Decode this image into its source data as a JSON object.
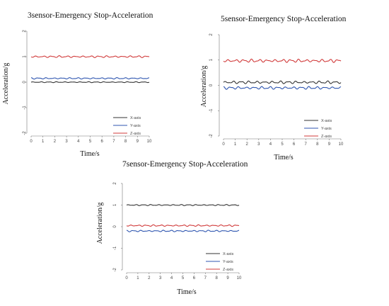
{
  "chart_data": [
    {
      "type": "line",
      "title": "3sensor-Emergency Stop-Acceleration",
      "xlabel": "Time/s",
      "ylabel": "Acceleration/g",
      "xticks": [
        "0",
        "1",
        "2",
        "3",
        "4",
        "5",
        "6",
        "7",
        "8",
        "9",
        "10"
      ],
      "yticks": [
        "-2",
        "-1",
        "0",
        "1",
        "2"
      ],
      "xlim": [
        0,
        10
      ],
      "ylim": [
        -2,
        2
      ],
      "grid": false,
      "legend_position": "bottom-right",
      "series": [
        {
          "name": "X-axis",
          "color": "#333333",
          "base": 0,
          "amplitude": 0.02
        },
        {
          "name": "Y-axis",
          "color": "#2f56b0",
          "base": 0.15,
          "amplitude": 0.03
        },
        {
          "name": "Z-axis",
          "color": "#d13b3b",
          "base": 1.0,
          "amplitude": 0.04
        }
      ]
    },
    {
      "type": "line",
      "title": "5sensor-Emergency Stop-Acceleration",
      "xlabel": "Time/s",
      "ylabel": "Acceleration/g",
      "xticks": [
        "0",
        "1",
        "2",
        "3",
        "4",
        "5",
        "6",
        "7",
        "8",
        "9",
        "10"
      ],
      "yticks": [
        "-2",
        "-1",
        "0",
        "1",
        "2"
      ],
      "xlim": [
        0,
        10
      ],
      "ylim": [
        -2,
        2
      ],
      "grid": false,
      "legend_position": "bottom-right",
      "series": [
        {
          "name": "X-axis",
          "color": "#333333",
          "base": 0.12,
          "amplitude": 0.06
        },
        {
          "name": "Y-axis",
          "color": "#2f56b0",
          "base": -0.1,
          "amplitude": 0.06
        },
        {
          "name": "Z-axis",
          "color": "#d13b3b",
          "base": 0.97,
          "amplitude": 0.07
        }
      ]
    },
    {
      "type": "line",
      "title": "7sensor-Emergency Stop-Acceleration",
      "xlabel": "Time/s",
      "ylabel": "Acceleration/g",
      "xticks": [
        "0",
        "1",
        "2",
        "3",
        "4",
        "5",
        "6",
        "7",
        "8",
        "9",
        "10"
      ],
      "yticks": [
        "-2",
        "-1",
        "0",
        "1",
        "2"
      ],
      "xlim": [
        0,
        10
      ],
      "ylim": [
        -2,
        2
      ],
      "grid": false,
      "legend_position": "bottom-right",
      "series": [
        {
          "name": "X-axis",
          "color": "#333333",
          "base": 1.0,
          "amplitude": 0.03
        },
        {
          "name": "Y-axis",
          "color": "#2f56b0",
          "base": -0.2,
          "amplitude": 0.04
        },
        {
          "name": "Z-axis",
          "color": "#d13b3b",
          "base": 0.05,
          "amplitude": 0.04
        }
      ]
    }
  ]
}
